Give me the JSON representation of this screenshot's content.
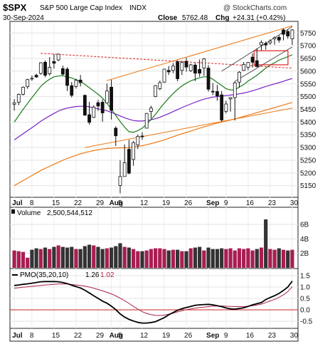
{
  "header": {
    "symbol": "$SPX",
    "index_name": "S&P 500 Large Cap Index",
    "exchange": "INDX",
    "watermark": "@ StockCharts.com",
    "date": "30-Sep-2024",
    "close_label": "Close",
    "close_value": "5762.48",
    "chg_label": "Chg",
    "chg_value": "+24.31 (+0.42%)"
  },
  "volume_panel": {
    "label": "Volume",
    "value": "2,500,544,512"
  },
  "pmo_panel": {
    "label": "PMO(35,20,10)",
    "value1": "1.26",
    "value2": "1.02"
  },
  "colors": {
    "up": "#111111",
    "down": "#111111",
    "ma_short": "#1a7a1a",
    "ma_mid": "#7a22c8",
    "ma_long": "#ee7711",
    "trend": "#ee7711",
    "resistance": "#dd2222",
    "volume_up": "#a81e52",
    "volume_down": "#333333",
    "pmo": "#000000",
    "pmo_signal": "#aa2244"
  },
  "chart_data": [
    {
      "type": "candlestick",
      "title": "$SPX S&P 500 Large Cap Index INDX",
      "x_ticks": [
        "Jul",
        "8",
        "15",
        "22",
        "29",
        "Aug",
        "5",
        "12",
        "19",
        "26",
        "Sep",
        "9",
        "16",
        "23",
        "30"
      ],
      "y_ticks": [
        5150,
        5200,
        5250,
        5300,
        5350,
        5400,
        5450,
        5500,
        5550,
        5600,
        5650,
        5700,
        5750
      ],
      "ylim": [
        5110,
        5790
      ],
      "candles": [
        {
          "d": "Jul 1",
          "o": 5470,
          "h": 5490,
          "l": 5445,
          "c": 5475
        },
        {
          "d": "Jul 2",
          "o": 5478,
          "h": 5512,
          "l": 5466,
          "c": 5509
        },
        {
          "d": "Jul 3",
          "o": 5509,
          "h": 5540,
          "l": 5505,
          "c": 5537
        },
        {
          "d": "Jul 5",
          "o": 5539,
          "h": 5570,
          "l": 5531,
          "c": 5567
        },
        {
          "d": "Jul 8",
          "o": 5572,
          "h": 5583,
          "l": 5562,
          "c": 5572
        },
        {
          "d": "Jul 9",
          "o": 5584,
          "h": 5590,
          "l": 5574,
          "c": 5577
        },
        {
          "d": "Jul 10",
          "o": 5591,
          "h": 5635,
          "l": 5586,
          "c": 5633
        },
        {
          "d": "Jul 11",
          "o": 5635,
          "h": 5642,
          "l": 5576,
          "c": 5584
        },
        {
          "d": "Jul 12",
          "o": 5590,
          "h": 5655,
          "l": 5583,
          "c": 5615
        },
        {
          "d": "Jul 15",
          "o": 5638,
          "h": 5667,
          "l": 5610,
          "c": 5631
        },
        {
          "d": "Jul 16",
          "o": 5644,
          "h": 5669,
          "l": 5639,
          "c": 5667
        },
        {
          "d": "Jul 17",
          "o": 5610,
          "h": 5622,
          "l": 5584,
          "c": 5588
        },
        {
          "d": "Jul 18",
          "o": 5608,
          "h": 5615,
          "l": 5522,
          "c": 5544
        },
        {
          "d": "Jul 19",
          "o": 5543,
          "h": 5557,
          "l": 5497,
          "c": 5505
        },
        {
          "d": "Jul 22",
          "o": 5540,
          "h": 5570,
          "l": 5532,
          "c": 5564
        },
        {
          "d": "Jul 23",
          "o": 5565,
          "h": 5585,
          "l": 5540,
          "c": 5555
        },
        {
          "d": "Jul 24",
          "o": 5505,
          "h": 5508,
          "l": 5425,
          "c": 5427
        },
        {
          "d": "Jul 25",
          "o": 5429,
          "h": 5479,
          "l": 5390,
          "c": 5399
        },
        {
          "d": "Jul 26",
          "o": 5418,
          "h": 5466,
          "l": 5416,
          "c": 5459
        },
        {
          "d": "Jul 29",
          "o": 5476,
          "h": 5487,
          "l": 5444,
          "c": 5463
        },
        {
          "d": "Jul 30",
          "o": 5478,
          "h": 5489,
          "l": 5401,
          "c": 5436
        },
        {
          "d": "Jul 31",
          "o": 5475,
          "h": 5551,
          "l": 5474,
          "c": 5522
        },
        {
          "d": "Aug 1",
          "o": 5537,
          "h": 5566,
          "l": 5410,
          "c": 5446
        },
        {
          "d": "Aug 2",
          "o": 5376,
          "h": 5383,
          "l": 5306,
          "c": 5346
        },
        {
          "d": "Aug 5",
          "o": 5151,
          "h": 5250,
          "l": 5120,
          "c": 5186
        },
        {
          "d": "Aug 6",
          "o": 5186,
          "h": 5312,
          "l": 5187,
          "c": 5240
        },
        {
          "d": "Aug 7",
          "o": 5293,
          "h": 5330,
          "l": 5195,
          "c": 5199
        },
        {
          "d": "Aug 8",
          "o": 5253,
          "h": 5326,
          "l": 5228,
          "c": 5319
        },
        {
          "d": "Aug 9",
          "o": 5310,
          "h": 5351,
          "l": 5294,
          "c": 5344
        },
        {
          "d": "Aug 12",
          "o": 5345,
          "h": 5360,
          "l": 5330,
          "c": 5344
        },
        {
          "d": "Aug 13",
          "o": 5376,
          "h": 5436,
          "l": 5376,
          "c": 5434
        },
        {
          "d": "Aug 14",
          "o": 5442,
          "h": 5464,
          "l": 5414,
          "c": 5455
        },
        {
          "d": "Aug 15",
          "o": 5500,
          "h": 5545,
          "l": 5498,
          "c": 5543
        },
        {
          "d": "Aug 16",
          "o": 5531,
          "h": 5563,
          "l": 5525,
          "c": 5555
        },
        {
          "d": "Aug 19",
          "o": 5557,
          "h": 5608,
          "l": 5554,
          "c": 5608
        },
        {
          "d": "Aug 20",
          "o": 5603,
          "h": 5620,
          "l": 5585,
          "c": 5597
        },
        {
          "d": "Aug 21",
          "o": 5603,
          "h": 5632,
          "l": 5592,
          "c": 5620
        },
        {
          "d": "Aug 22",
          "o": 5637,
          "h": 5643,
          "l": 5560,
          "c": 5570
        },
        {
          "d": "Aug 23",
          "o": 5603,
          "h": 5641,
          "l": 5585,
          "c": 5634
        },
        {
          "d": "Aug 26",
          "o": 5639,
          "h": 5652,
          "l": 5598,
          "c": 5616
        },
        {
          "d": "Aug 27",
          "o": 5602,
          "h": 5629,
          "l": 5597,
          "c": 5625
        },
        {
          "d": "Aug 28",
          "o": 5624,
          "h": 5632,
          "l": 5561,
          "c": 5592
        },
        {
          "d": "Aug 29",
          "o": 5607,
          "h": 5646,
          "l": 5578,
          "c": 5592
        },
        {
          "d": "Aug 30",
          "o": 5612,
          "h": 5651,
          "l": 5582,
          "c": 5648
        },
        {
          "d": "Sep 3",
          "o": 5612,
          "h": 5624,
          "l": 5520,
          "c": 5529
        },
        {
          "d": "Sep 4",
          "o": 5521,
          "h": 5553,
          "l": 5506,
          "c": 5520
        },
        {
          "d": "Sep 5",
          "o": 5520,
          "h": 5546,
          "l": 5484,
          "c": 5503
        },
        {
          "d": "Sep 6",
          "o": 5507,
          "h": 5522,
          "l": 5402,
          "c": 5408
        },
        {
          "d": "Sep 9",
          "o": 5442,
          "h": 5484,
          "l": 5434,
          "c": 5471
        },
        {
          "d": "Sep 10",
          "o": 5491,
          "h": 5497,
          "l": 5441,
          "c": 5496
        },
        {
          "d": "Sep 11",
          "o": 5496,
          "h": 5560,
          "l": 5406,
          "c": 5554
        },
        {
          "d": "Sep 12",
          "o": 5557,
          "h": 5600,
          "l": 5535,
          "c": 5596
        },
        {
          "d": "Sep 13",
          "o": 5603,
          "h": 5636,
          "l": 5601,
          "c": 5626
        },
        {
          "d": "Sep 16",
          "o": 5615,
          "h": 5636,
          "l": 5604,
          "c": 5634
        },
        {
          "d": "Sep 17",
          "o": 5655,
          "h": 5670,
          "l": 5614,
          "c": 5635
        },
        {
          "d": "Sep 18",
          "o": 5641,
          "h": 5690,
          "l": 5615,
          "c": 5618
        },
        {
          "d": "Sep 19",
          "o": 5703,
          "h": 5721,
          "l": 5682,
          "c": 5713
        },
        {
          "d": "Sep 20",
          "o": 5709,
          "h": 5716,
          "l": 5684,
          "c": 5703
        },
        {
          "d": "Sep 23",
          "o": 5711,
          "h": 5725,
          "l": 5704,
          "c": 5718
        },
        {
          "d": "Sep 24",
          "o": 5727,
          "h": 5736,
          "l": 5704,
          "c": 5732
        },
        {
          "d": "Sep 25",
          "o": 5733,
          "h": 5741,
          "l": 5712,
          "c": 5722
        },
        {
          "d": "Sep 26",
          "o": 5762,
          "h": 5767,
          "l": 5721,
          "c": 5745
        },
        {
          "d": "Sep 27",
          "o": 5756,
          "h": 5763,
          "l": 5727,
          "c": 5738
        },
        {
          "d": "Sep 30",
          "o": 5727,
          "h": 5765,
          "l": 5703,
          "c": 5762
        }
      ],
      "ma_short": [
        5400,
        5425,
        5450,
        5473,
        5496,
        5518,
        5540,
        5556,
        5568,
        5578,
        5581,
        5582,
        5578,
        5573,
        5566,
        5560,
        5548,
        5535,
        5522,
        5509,
        5494,
        5474,
        5450,
        5426,
        5402,
        5380,
        5362,
        5360,
        5366,
        5376,
        5392,
        5410,
        5430,
        5453,
        5474,
        5494,
        5512,
        5528,
        5542,
        5553,
        5562,
        5568,
        5574,
        5578,
        5578,
        5568,
        5556,
        5544,
        5531,
        5526,
        5526,
        5538,
        5547,
        5561,
        5572,
        5584,
        5598,
        5612,
        5624,
        5633,
        5643,
        5650,
        5657,
        5664
      ],
      "ma_mid": [
        5330,
        5342,
        5354,
        5366,
        5378,
        5390,
        5403,
        5414,
        5424,
        5434,
        5443,
        5450,
        5455,
        5458,
        5461,
        5462,
        5462,
        5460,
        5456,
        5452,
        5448,
        5444,
        5438,
        5431,
        5424,
        5417,
        5411,
        5406,
        5404,
        5404,
        5406,
        5409,
        5413,
        5419,
        5426,
        5433,
        5441,
        5449,
        5457,
        5464,
        5471,
        5478,
        5484,
        5490,
        5494,
        5498,
        5500,
        5502,
        5504,
        5506,
        5508,
        5511,
        5514,
        5518,
        5523,
        5528,
        5534,
        5540,
        5545,
        5550,
        5555,
        5560,
        5566,
        5571
      ],
      "ma_long": [
        5150,
        5160,
        5170,
        5180,
        5190,
        5200,
        5210,
        5218,
        5226,
        5234,
        5242,
        5250,
        5257,
        5263,
        5269,
        5275,
        5280,
        5284,
        5288,
        5291,
        5294,
        5296,
        5297,
        5298,
        5299,
        5299,
        5300,
        5302,
        5304,
        5307,
        5311,
        5315,
        5320,
        5325,
        5330,
        5336,
        5342,
        5348,
        5354,
        5359,
        5365,
        5370,
        5376,
        5381,
        5386,
        5391,
        5396,
        5400,
        5404,
        5408,
        5412,
        5417,
        5422,
        5427,
        5432,
        5437,
        5442,
        5447,
        5452,
        5457,
        5462,
        5467,
        5472,
        5477
      ],
      "trendlines": [
        {
          "name": "upper-trendline",
          "from": [
            "Jul 31",
            5563
          ],
          "to": [
            "Sep 30",
            5778
          ]
        },
        {
          "name": "lower-trendline",
          "from": [
            "Jul 24",
            5300
          ],
          "to": [
            "Sep 30",
            5455
          ]
        },
        {
          "name": "resistance-line",
          "from": [
            "Jul 10",
            5670
          ],
          "to": [
            "Sep 30",
            5612
          ]
        },
        {
          "name": "rising-channel-upper",
          "from": [
            "Sep 6",
            5600
          ],
          "to": [
            "Sep 30",
            5775
          ]
        },
        {
          "name": "rising-channel-lower",
          "from": [
            "Sep 11",
            5560
          ],
          "to": [
            "Sep 30",
            5695
          ]
        }
      ],
      "highlight_box": {
        "from": "Sep 18",
        "to": "Sep 30",
        "y": [
          5625,
          5680
        ]
      }
    },
    {
      "type": "bar",
      "title": "Volume 2,500,544,512",
      "y_ticks": [
        "2B",
        "4B",
        "6B"
      ],
      "ylim": [
        0,
        7
      ],
      "values": [
        2.4,
        2.3,
        2.2,
        1.4,
        2.5,
        2.7,
        2.6,
        2.8,
        2.6,
        2.9,
        3.1,
        2.9,
        2.8,
        2.9,
        2.6,
        2.6,
        3.0,
        3.2,
        3.1,
        2.9,
        2.6,
        2.7,
        2.8,
        3.0,
        3.4,
        2.9,
        2.8,
        2.6,
        2.3,
        2.3,
        2.4,
        2.6,
        2.7,
        2.7,
        2.6,
        2.4,
        2.5,
        2.5,
        2.3,
        2.3,
        2.7,
        2.8,
        2.9,
        2.4,
        2.8,
        2.6,
        2.6,
        2.7,
        2.6,
        2.7,
        2.4,
        2.7,
        2.6,
        2.7,
        2.4,
        2.6,
        2.8,
        6.7,
        2.6,
        2.5,
        2.7,
        2.5,
        2.4,
        2.5
      ],
      "up_down": [
        1,
        1,
        1,
        1,
        0,
        0,
        1,
        0,
        1,
        0,
        1,
        0,
        0,
        0,
        1,
        0,
        0,
        0,
        1,
        0,
        0,
        1,
        0,
        0,
        0,
        1,
        0,
        1,
        1,
        0,
        1,
        1,
        1,
        1,
        1,
        0,
        1,
        0,
        1,
        0,
        1,
        0,
        0,
        1,
        0,
        0,
        0,
        0,
        1,
        1,
        1,
        1,
        1,
        1,
        1,
        0,
        1,
        0,
        1,
        1,
        0,
        1,
        0,
        1
      ]
    },
    {
      "type": "line",
      "title": "PMO(35,20,10) 1.26, 1.02",
      "y_ticks": [
        -0.5,
        0.0,
        0.5,
        1.0,
        1.5
      ],
      "ylim": [
        -0.75,
        1.75
      ],
      "series": [
        {
          "name": "PMO",
          "values": [
            1.07,
            1.09,
            1.12,
            1.14,
            1.17,
            1.2,
            1.23,
            1.24,
            1.24,
            1.24,
            1.23,
            1.2,
            1.15,
            1.08,
            1.02,
            0.96,
            0.86,
            0.74,
            0.62,
            0.5,
            0.38,
            0.29,
            0.16,
            0.01,
            -0.18,
            -0.32,
            -0.42,
            -0.49,
            -0.55,
            -0.58,
            -0.58,
            -0.56,
            -0.52,
            -0.43,
            -0.34,
            -0.22,
            -0.12,
            -0.02,
            0.05,
            0.1,
            0.15,
            0.2,
            0.22,
            0.23,
            0.24,
            0.22,
            0.18,
            0.14,
            0.08,
            0.04,
            0.03,
            0.06,
            0.09,
            0.15,
            0.22,
            0.27,
            0.32,
            0.45,
            0.54,
            0.62,
            0.72,
            0.85,
            1.0,
            1.26
          ]
        },
        {
          "name": "Signal",
          "values": [
            0.95,
            0.97,
            0.99,
            1.01,
            1.03,
            1.05,
            1.07,
            1.09,
            1.1,
            1.12,
            1.13,
            1.13,
            1.13,
            1.11,
            1.09,
            1.07,
            1.04,
            1.0,
            0.95,
            0.89,
            0.83,
            0.77,
            0.7,
            0.61,
            0.51,
            0.4,
            0.28,
            0.15,
            0.03,
            -0.08,
            -0.16,
            -0.21,
            -0.24,
            -0.25,
            -0.23,
            -0.19,
            -0.15,
            -0.09,
            -0.04,
            0.01,
            0.04,
            0.07,
            0.1,
            0.12,
            0.14,
            0.16,
            0.17,
            0.17,
            0.16,
            0.15,
            0.14,
            0.14,
            0.14,
            0.16,
            0.18,
            0.21,
            0.25,
            0.32,
            0.39,
            0.46,
            0.55,
            0.66,
            0.8,
            1.02
          ]
        }
      ]
    }
  ]
}
